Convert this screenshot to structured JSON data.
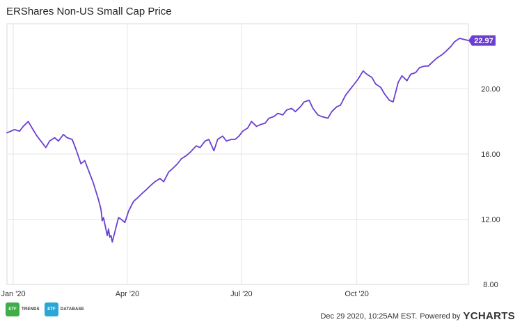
{
  "title": "ERShares Non-US Small Cap Price",
  "footer": {
    "timestamp": "Dec 29 2020, 10:25AM EST.",
    "powered_by": "Powered by",
    "brand": "YCHARTS",
    "logo1_text": "TRENDS",
    "logo2_text": "DATABASE",
    "logo_badge": "ETF"
  },
  "colors": {
    "line": "#6a3fcf",
    "grid": "#e6e6e6",
    "axis_text": "#333333",
    "etf_trends_badge": "#3fae49",
    "etf_database_badge": "#2aa7d6"
  },
  "chart_data": {
    "type": "line",
    "title": "ERShares Non-US Small Cap Price",
    "xlabel": "",
    "ylabel": "",
    "x_tick_labels": [
      "Jan '20",
      "Apr '20",
      "Jul '20",
      "Oct '20"
    ],
    "x_tick_dates": [
      "2020-01-01",
      "2020-04-01",
      "2020-07-01",
      "2020-10-01"
    ],
    "x_range": [
      "2019-12-27",
      "2020-12-29"
    ],
    "ylim": [
      8.0,
      24.0
    ],
    "y_ticks": [
      8.0,
      12.0,
      16.0,
      20.0
    ],
    "y_tick_labels": [
      "8.00",
      "12.00",
      "16.00",
      "20.00"
    ],
    "grid": true,
    "last_value_label": "22.97",
    "series": [
      {
        "x": [
          "2019-12-27",
          "2020-01-02",
          "2020-01-06",
          "2020-01-09",
          "2020-01-13",
          "2020-01-16",
          "2020-01-20",
          "2020-01-23",
          "2020-01-27",
          "2020-01-30",
          "2020-02-03",
          "2020-02-06",
          "2020-02-10",
          "2020-02-13",
          "2020-02-17",
          "2020-02-20",
          "2020-02-24",
          "2020-02-27",
          "2020-03-02",
          "2020-03-05",
          "2020-03-09",
          "2020-03-11",
          "2020-03-12",
          "2020-03-13",
          "2020-03-16",
          "2020-03-17",
          "2020-03-18",
          "2020-03-19",
          "2020-03-20",
          "2020-03-23",
          "2020-03-25",
          "2020-03-27",
          "2020-03-30",
          "2020-04-02",
          "2020-04-06",
          "2020-04-09",
          "2020-04-13",
          "2020-04-16",
          "2020-04-20",
          "2020-04-23",
          "2020-04-27",
          "2020-04-30",
          "2020-05-04",
          "2020-05-07",
          "2020-05-11",
          "2020-05-14",
          "2020-05-18",
          "2020-05-21",
          "2020-05-26",
          "2020-05-29",
          "2020-06-02",
          "2020-06-05",
          "2020-06-09",
          "2020-06-12",
          "2020-06-16",
          "2020-06-19",
          "2020-06-23",
          "2020-06-26",
          "2020-06-29",
          "2020-07-02",
          "2020-07-06",
          "2020-07-09",
          "2020-07-13",
          "2020-07-16",
          "2020-07-20",
          "2020-07-23",
          "2020-07-27",
          "2020-07-30",
          "2020-08-03",
          "2020-08-06",
          "2020-08-10",
          "2020-08-13",
          "2020-08-17",
          "2020-08-20",
          "2020-08-24",
          "2020-08-27",
          "2020-08-31",
          "2020-09-03",
          "2020-09-08",
          "2020-09-11",
          "2020-09-15",
          "2020-09-18",
          "2020-09-22",
          "2020-09-25",
          "2020-09-29",
          "2020-10-02",
          "2020-10-06",
          "2020-10-09",
          "2020-10-13",
          "2020-10-16",
          "2020-10-20",
          "2020-10-23",
          "2020-10-27",
          "2020-10-30",
          "2020-11-03",
          "2020-11-06",
          "2020-11-10",
          "2020-11-13",
          "2020-11-17",
          "2020-11-20",
          "2020-11-24",
          "2020-11-27",
          "2020-12-01",
          "2020-12-04",
          "2020-12-08",
          "2020-12-11",
          "2020-12-15",
          "2020-12-18",
          "2020-12-22",
          "2020-12-29"
        ],
        "y": [
          17.3,
          17.5,
          17.4,
          17.7,
          18.0,
          17.6,
          17.1,
          16.8,
          16.4,
          16.8,
          17.0,
          16.8,
          17.2,
          17.0,
          16.9,
          16.3,
          15.4,
          15.6,
          14.8,
          14.2,
          13.2,
          12.6,
          11.9,
          12.1,
          11.0,
          11.4,
          10.9,
          11.0,
          10.6,
          11.5,
          12.1,
          12.0,
          11.8,
          12.5,
          13.1,
          13.3,
          13.6,
          13.8,
          14.1,
          14.3,
          14.5,
          14.3,
          14.9,
          15.1,
          15.4,
          15.7,
          15.9,
          16.1,
          16.5,
          16.4,
          16.8,
          16.9,
          16.2,
          16.9,
          17.1,
          16.8,
          16.9,
          16.9,
          17.1,
          17.4,
          17.6,
          18.0,
          17.7,
          17.8,
          17.9,
          18.2,
          18.3,
          18.5,
          18.4,
          18.7,
          18.8,
          18.6,
          18.9,
          19.2,
          19.3,
          18.8,
          18.4,
          18.3,
          18.2,
          18.6,
          18.9,
          19.0,
          19.6,
          19.9,
          20.3,
          20.6,
          21.1,
          20.9,
          20.7,
          20.3,
          20.1,
          19.7,
          19.3,
          19.2,
          20.4,
          20.8,
          20.5,
          20.9,
          21.0,
          21.3,
          21.4,
          21.4,
          21.7,
          21.9,
          22.1,
          22.3,
          22.6,
          22.9,
          23.1,
          22.97
        ]
      }
    ]
  }
}
